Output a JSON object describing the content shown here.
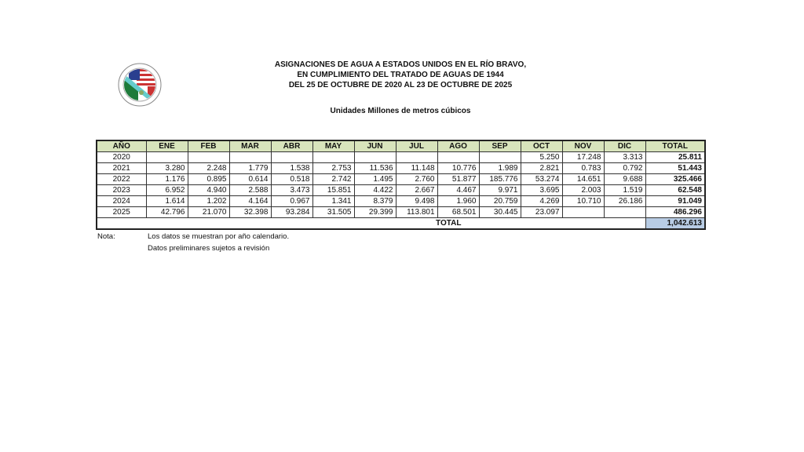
{
  "title_lines": [
    "ASIGNACIONES DE AGUA A ESTADOS UNIDOS EN EL RÍO BRAVO,",
    "EN CUMPLIMIENTO DEL TRATADO DE AGUAS DE 1944",
    "DEL 25 DE OCTUBRE DE 2020 AL 23 DE OCTUBRE DE 2025"
  ],
  "subtitle": "Unidades Millones de metros cúbicos",
  "table": {
    "headers": [
      "AÑO",
      "ENE",
      "FEB",
      "MAR",
      "ABR",
      "MAY",
      "JUN",
      "JUL",
      "AGO",
      "SEP",
      "OCT",
      "NOV",
      "DIC",
      "TOTAL"
    ],
    "rows": [
      [
        "2020",
        "",
        "",
        "",
        "",
        "",
        "",
        "",
        "",
        "",
        "5.250",
        "17.248",
        "3.313",
        "25.811"
      ],
      [
        "2021",
        "3.280",
        "2.248",
        "1.779",
        "1.538",
        "2.753",
        "11.536",
        "11.148",
        "10.776",
        "1.989",
        "2.821",
        "0.783",
        "0.792",
        "51.443"
      ],
      [
        "2022",
        "1.176",
        "0.895",
        "0.614",
        "0.518",
        "2.742",
        "1.495",
        "2.760",
        "51.877",
        "185.776",
        "53.274",
        "14.651",
        "9.688",
        "325.466"
      ],
      [
        "2023",
        "6.952",
        "4.940",
        "2.588",
        "3.473",
        "15.851",
        "4.422",
        "2.667",
        "4.467",
        "9.971",
        "3.695",
        "2.003",
        "1.519",
        "62.548"
      ],
      [
        "2024",
        "1.614",
        "1.202",
        "4.164",
        "0.967",
        "1.341",
        "8.379",
        "9.498",
        "1.960",
        "20.759",
        "4.269",
        "10.710",
        "26.186",
        "91.049"
      ],
      [
        "2025",
        "42.796",
        "21.070",
        "32.398",
        "93.284",
        "31.505",
        "29.399",
        "113.801",
        "68.501",
        "30.445",
        "23.097",
        "",
        "",
        "486.296"
      ]
    ],
    "total_label": "TOTAL",
    "grand_total": "1,042.613"
  },
  "notes": {
    "label": "Nota:",
    "lines": [
      "Los datos se muestran por año calendario.",
      "Datos preliminares sujetos a revisión"
    ]
  },
  "colors": {
    "header_bg": "#d8e4bc",
    "grand_total_bg": "#b8cce4"
  }
}
